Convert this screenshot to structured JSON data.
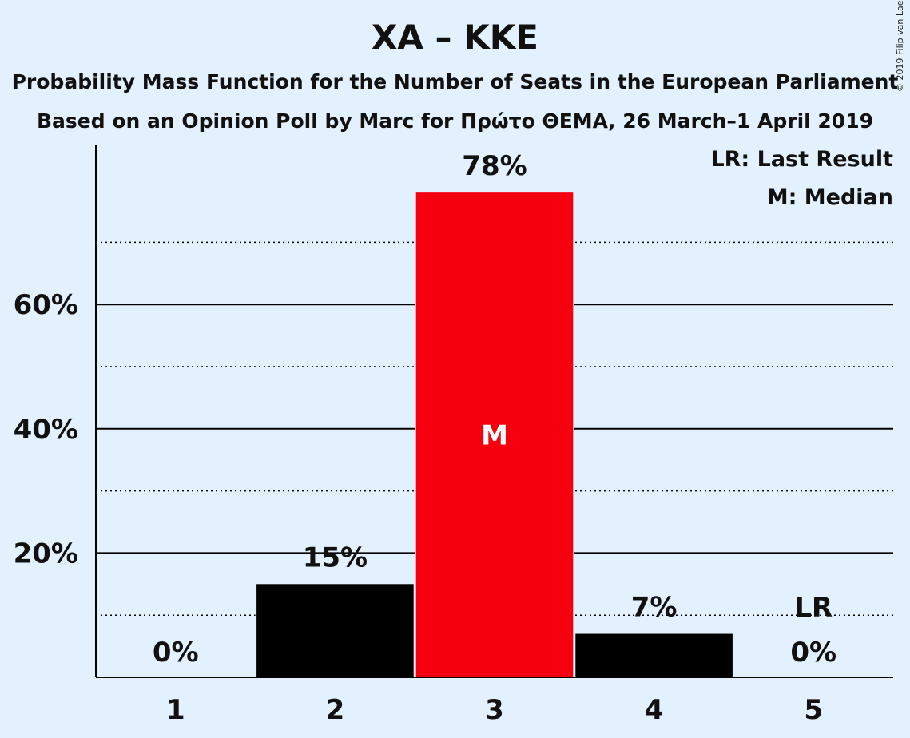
{
  "header": {
    "title": "ΧΑ – ΚΚΕ",
    "subtitle": "Probability Mass Function for the Number of Seats in the European Parliament",
    "source": "Based on an Opinion Poll by Marc for Πρώτο ΘΕΜΑ, 26 March–1 April 2019",
    "copyright": "© 2019 Filip van Laenen"
  },
  "legend": {
    "last_result": "LR: Last Result",
    "median": "M: Median"
  },
  "colors": {
    "background": "#e3f1fe",
    "bar": "#000000",
    "median_bar": "#f5000f",
    "median_text": "#ffffff"
  },
  "chart_data": {
    "type": "bar",
    "categories": [
      "1",
      "2",
      "3",
      "4",
      "5"
    ],
    "values": [
      0,
      15,
      78,
      7,
      0
    ],
    "labels": [
      "0%",
      "15%",
      "78%",
      "7%",
      "0%"
    ],
    "median_index": 2,
    "median_label": "M",
    "last_result_index": 4,
    "last_result_label": "LR",
    "ylim": [
      0,
      85
    ],
    "yticks": [
      20,
      40,
      60
    ],
    "ytick_labels": [
      "20%",
      "40%",
      "60%"
    ],
    "minor_gridlines": [
      10,
      30,
      50,
      70
    ],
    "grid": true
  }
}
